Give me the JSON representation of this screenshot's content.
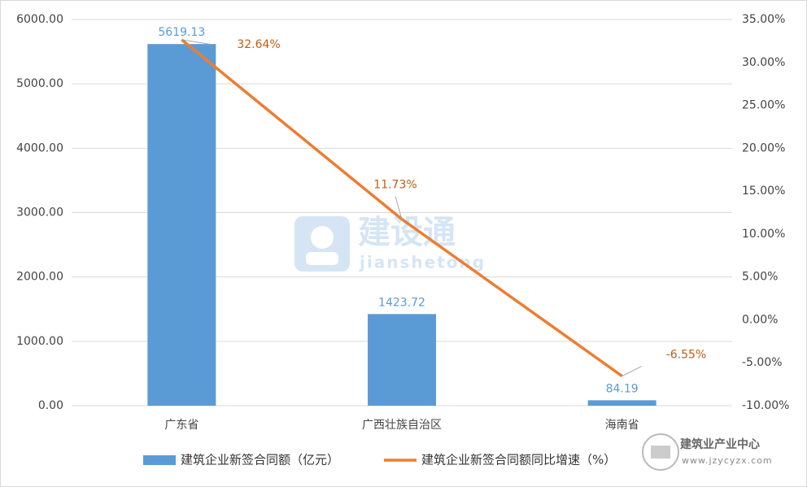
{
  "chart_data": {
    "type": "bar_line",
    "categories": [
      "广东省",
      "广西壮族自治区",
      "海南省"
    ],
    "series": [
      {
        "name": "建筑企业新签合同额（亿元）",
        "type": "bar",
        "color": "#5b9bd5",
        "values": [
          5619.13,
          1423.72,
          84.19
        ]
      },
      {
        "name": "建筑企业新签合同额同比增速（%）",
        "type": "line",
        "axis": "y2",
        "color": "#ed7d31",
        "values": [
          32.64,
          11.73,
          -6.55
        ],
        "value_labels": [
          "32.64%",
          "11.73%",
          "-6.55%"
        ]
      }
    ],
    "ylim": [
      0,
      6000
    ],
    "yticks": [
      {
        "value": 0,
        "label": "0.00"
      },
      {
        "value": 1000,
        "label": "1000.00"
      },
      {
        "value": 2000,
        "label": "2000.00"
      },
      {
        "value": 3000,
        "label": "3000.00"
      },
      {
        "value": 4000,
        "label": "4000.00"
      },
      {
        "value": 5000,
        "label": "5000.00"
      },
      {
        "value": 6000,
        "label": "6000.00"
      }
    ],
    "y2lim": [
      -10,
      35
    ],
    "y2ticks": [
      {
        "value": -10,
        "label": "-10.00%"
      },
      {
        "value": -5,
        "label": "-5.00%"
      },
      {
        "value": 0,
        "label": "0.00%"
      },
      {
        "value": 5,
        "label": "5.00%"
      },
      {
        "value": 10,
        "label": "10.00%"
      },
      {
        "value": 15,
        "label": "15.00%"
      },
      {
        "value": 20,
        "label": "20.00%"
      },
      {
        "value": 25,
        "label": "25.00%"
      },
      {
        "value": 30,
        "label": "30.00%"
      },
      {
        "value": 35,
        "label": "35.00%"
      }
    ],
    "grid": true,
    "legend": "bottom",
    "watermark": {
      "main": "建设通",
      "sub": "jianshetong"
    },
    "source_mark": {
      "name": "建筑业产业中心",
      "url": "www.jzycyzx.com"
    }
  }
}
